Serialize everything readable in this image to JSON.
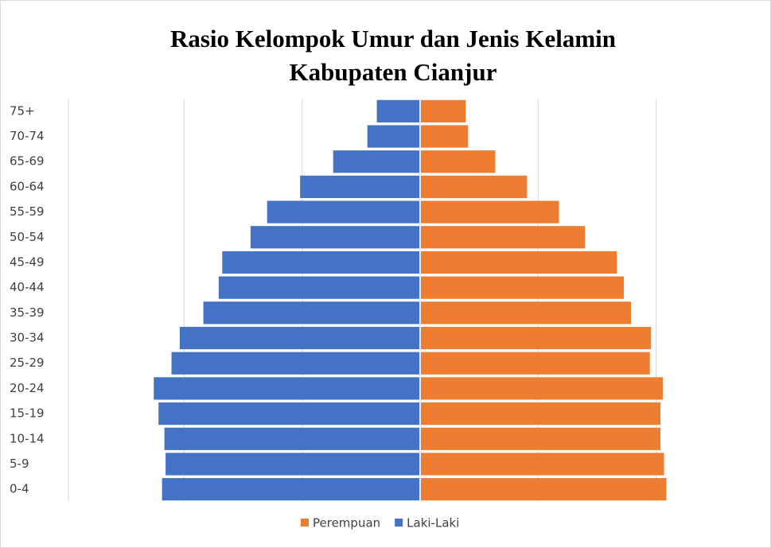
{
  "chart_data": {
    "type": "pyramid",
    "title": [
      "Rasio Kelompok Umur dan Jenis Kelamin",
      "Kabupaten Cianjur"
    ],
    "categories": [
      "75+",
      "70-74",
      "65-69",
      "60-64",
      "55-59",
      "50-54",
      "45-49",
      "40-44",
      "35-39",
      "30-34",
      "25-29",
      "20-24",
      "15-19",
      "10-14",
      "5-9",
      "0-4"
    ],
    "series": [
      {
        "name": "Perempuan",
        "color": "#ed7d31",
        "side": "right",
        "values": [
          0.38,
          0.4,
          0.63,
          0.9,
          1.17,
          1.39,
          1.66,
          1.72,
          1.78,
          1.95,
          1.94,
          2.05,
          2.03,
          2.03,
          2.06,
          2.08
        ]
      },
      {
        "name": "Laki-Laki",
        "color": "#4472c4",
        "side": "left",
        "values": [
          0.36,
          0.44,
          0.73,
          1.01,
          1.29,
          1.43,
          1.67,
          1.7,
          1.83,
          2.03,
          2.1,
          2.25,
          2.21,
          2.16,
          2.15,
          2.18
        ]
      }
    ],
    "xlim": [
      -2.98,
      2.98
    ],
    "xticks": [
      -2,
      -1,
      0,
      1,
      2
    ],
    "grid": true
  }
}
